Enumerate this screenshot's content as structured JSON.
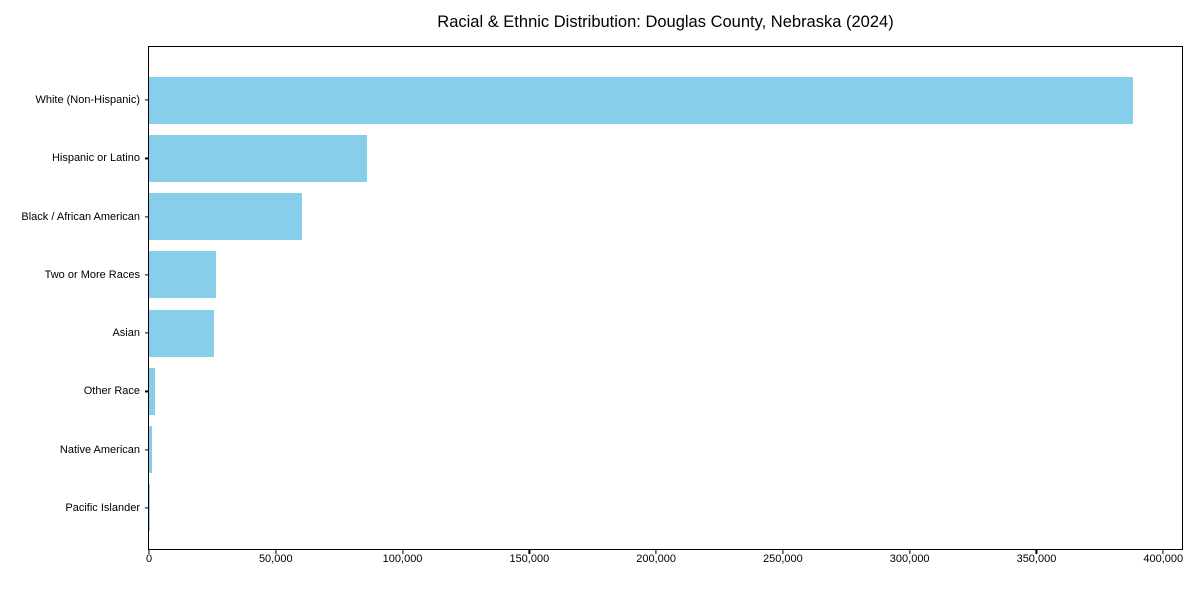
{
  "chart_data": {
    "type": "bar",
    "orientation": "horizontal",
    "title": "Racial & Ethnic Distribution: Douglas County, Nebraska (2024)",
    "xlabel": "",
    "ylabel": "",
    "categories": [
      "White (Non-Hispanic)",
      "Hispanic or Latino",
      "Black / African American",
      "Two or More Races",
      "Asian",
      "Other Race",
      "Native American",
      "Pacific Islander"
    ],
    "values": [
      388000,
      86000,
      60500,
      26500,
      25800,
      2500,
      1100,
      400
    ],
    "xlim": [
      0,
      407400
    ],
    "xticks": [
      0,
      50000,
      100000,
      150000,
      200000,
      250000,
      300000,
      350000,
      400000
    ],
    "xtick_labels": [
      "0",
      "50,000",
      "100,000",
      "150,000",
      "200,000",
      "250,000",
      "300,000",
      "350,000",
      "400,000"
    ],
    "bar_color": "#87CEEB",
    "background_color": "#ffffff",
    "frame_color": "#000000",
    "grid": false,
    "legend": null
  }
}
